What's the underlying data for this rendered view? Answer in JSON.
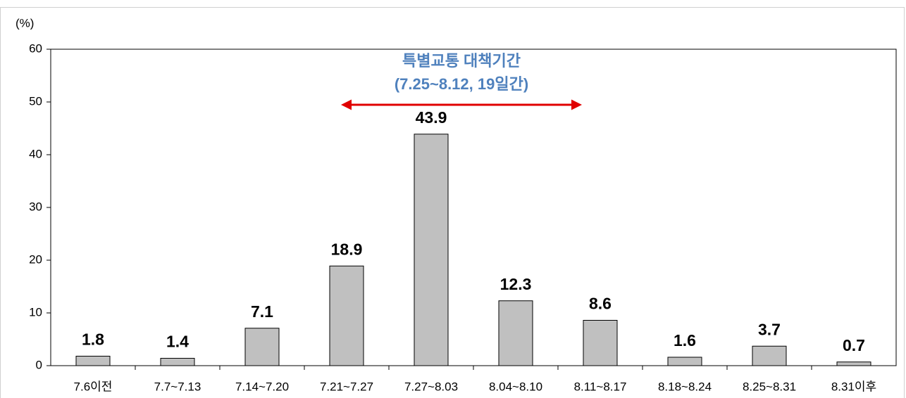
{
  "chart_data": {
    "type": "bar",
    "y_unit_label": "(%)",
    "annotation": [
      "특별교통 대책기간",
      "(7.25~8.12, 19일간)"
    ],
    "categories": [
      "7.6이전",
      "7.7~7.13",
      "7.14~7.20",
      "7.21~7.27",
      "7.27~8.03",
      "8.04~8.10",
      "8.11~8.17",
      "8.18~8.24",
      "8.25~8.31",
      "8.31이후"
    ],
    "values": [
      1.8,
      1.4,
      7.1,
      18.9,
      43.9,
      12.3,
      8.6,
      1.6,
      3.7,
      0.7
    ],
    "color": "#c0c0c0",
    "ylim": [
      0,
      60
    ],
    "yticks": [
      0,
      10,
      20,
      30,
      40,
      50,
      60
    ],
    "grid": false
  }
}
